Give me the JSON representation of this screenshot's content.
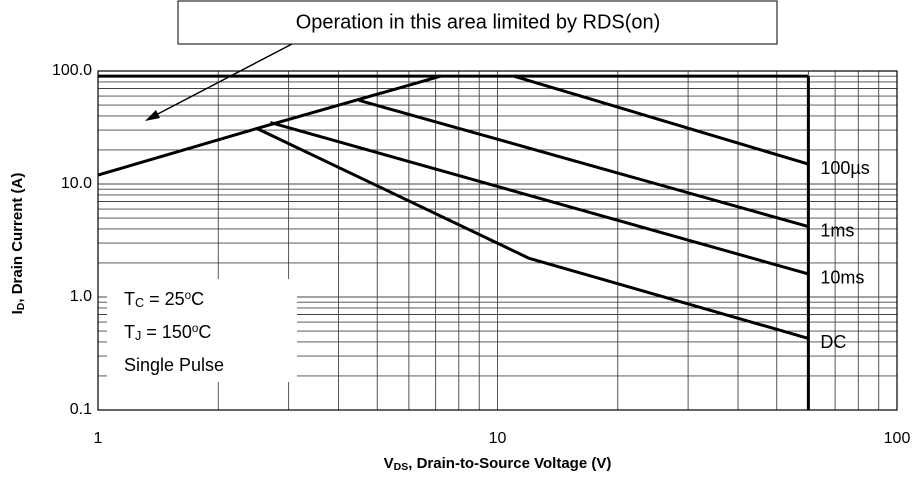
{
  "chart_data": {
    "type": "line",
    "annotation": "Operation in this area limited by RDS(on)",
    "xlabel": [
      {
        "text": "V"
      },
      {
        "sub": "DS"
      },
      {
        "text": ", Drain-to-Source Voltage (V)"
      }
    ],
    "ylabel": [
      {
        "text": "I"
      },
      {
        "sub": "D"
      },
      {
        "text": ", Drain Current (A)"
      }
    ],
    "conditions": [
      [
        {
          "text": "T"
        },
        {
          "sub": "C"
        },
        {
          "text": " = 25"
        },
        {
          "sup": "o"
        },
        {
          "text": "C"
        }
      ],
      [
        {
          "text": "T"
        },
        {
          "sub": "J"
        },
        {
          "text": " = 150"
        },
        {
          "sup": "o"
        },
        {
          "text": "C"
        }
      ],
      [
        {
          "text": "Single Pulse"
        }
      ]
    ],
    "xlim": [
      1,
      100
    ],
    "ylim": [
      0.1,
      100
    ],
    "xlog": true,
    "ylog": true,
    "xticks": [
      1,
      10,
      100
    ],
    "yticks": [
      0.1,
      {
        "value": 1,
        "label": "1.0"
      },
      {
        "value": 10,
        "label": "10.0"
      },
      {
        "value": 100,
        "label": "100.0"
      }
    ],
    "grid": true,
    "minor_grid": true,
    "series": [
      {
        "color": "#000000",
        "x": [
          1,
          2.5,
          7.2
        ],
        "values": [
          12,
          31,
          90
        ]
      },
      {
        "color": "#000000",
        "x": [
          1,
          60
        ],
        "values": [
          90,
          90
        ]
      },
      {
        "color": "#000000",
        "x": [
          60,
          60
        ],
        "values": [
          90,
          0.1
        ]
      },
      {
        "name": "100µs",
        "color": "#000000",
        "x": [
          11,
          60
        ],
        "values": [
          90,
          15
        ]
      },
      {
        "name": "1ms",
        "color": "#000000",
        "x": [
          4.5,
          60
        ],
        "values": [
          55,
          4.2
        ]
      },
      {
        "name": "10ms",
        "color": "#000000",
        "x": [
          2.7,
          60
        ],
        "values": [
          35,
          1.6
        ]
      },
      {
        "name": "DC",
        "color": "#000000",
        "x": [
          2.5,
          12,
          60
        ],
        "values": [
          31,
          2.2,
          0.43
        ]
      }
    ]
  }
}
